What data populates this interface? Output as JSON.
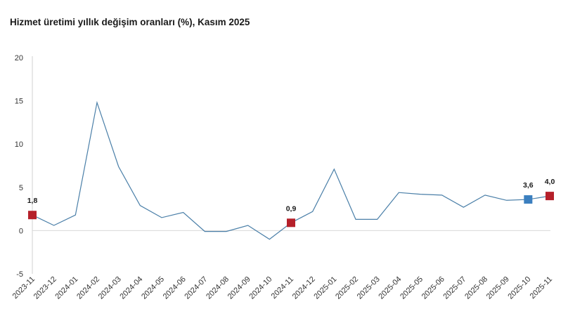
{
  "chart_data": {
    "type": "line",
    "title": "Hizmet üretimi yıllık değişim oranları (%), Kasım 2025",
    "xlabel": "",
    "ylabel": "",
    "ylim": [
      -5,
      20
    ],
    "yticks": [
      "-5",
      "0",
      "5",
      "10",
      "15",
      "20"
    ],
    "grid": false,
    "x": [
      "2023-11",
      "2023-12",
      "2024-01",
      "2024-02",
      "2024-03",
      "2024-04",
      "2024-05",
      "2024-06",
      "2024-07",
      "2024-08",
      "2024-09",
      "2024-10",
      "2024-11",
      "2024-12",
      "2025-01",
      "2025-02",
      "2025-03",
      "2025-04",
      "2025-05",
      "2025-06",
      "2025-07",
      "2025-08",
      "2025-09",
      "2025-10",
      "2025-11"
    ],
    "series": [
      {
        "values": [
          1.8,
          0.6,
          1.8,
          14.8,
          7.4,
          2.9,
          1.5,
          2.1,
          -0.1,
          -0.1,
          0.6,
          -1.0,
          0.9,
          2.2,
          7.1,
          1.3,
          1.3,
          4.4,
          4.2,
          4.1,
          2.7,
          4.1,
          3.5,
          3.6,
          4.0
        ],
        "color": "#4a7fa8"
      }
    ],
    "highlights": [
      {
        "x": "2023-11",
        "value": 1.8,
        "label": "1,8",
        "color": "#b5202a"
      },
      {
        "x": "2024-11",
        "value": 0.9,
        "label": "0,9",
        "color": "#b5202a"
      },
      {
        "x": "2025-10",
        "value": 3.6,
        "label": "3,6",
        "color": "#3b7fbf"
      },
      {
        "x": "2025-11",
        "value": 4.0,
        "label": "4,0",
        "color": "#b5202a"
      }
    ]
  }
}
